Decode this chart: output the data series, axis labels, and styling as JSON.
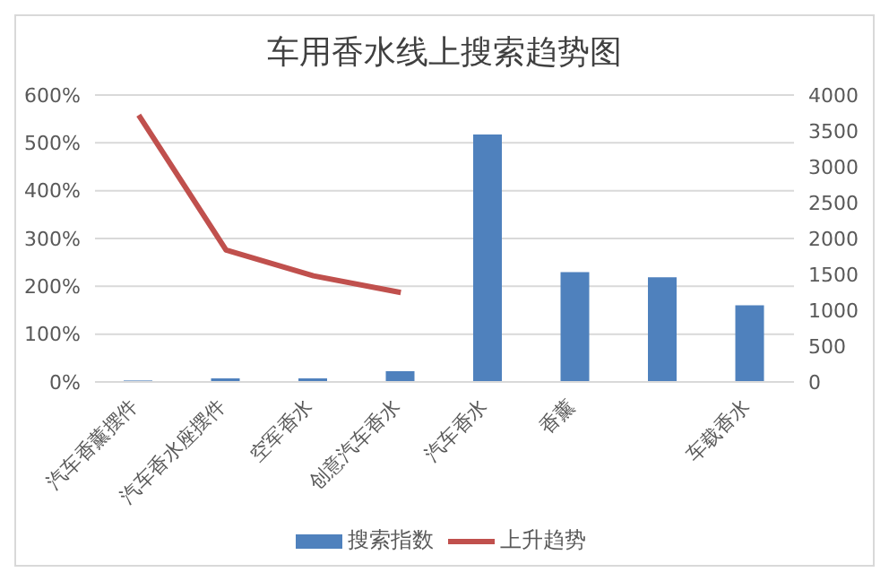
{
  "chart_data": {
    "type": "bar",
    "title": "车用香水线上搜索趋势图",
    "categories": [
      "汽车香薰摆件",
      "汽车香水座摆件",
      "空军香水",
      "创意汽车香水",
      "汽车香水",
      "香薰",
      null,
      "车载香水"
    ],
    "series": [
      {
        "name": "搜索指数",
        "axis": "y2",
        "color": "#4f81bd",
        "values": [
          20,
          50,
          50,
          150,
          3450,
          1530,
          1460,
          1070
        ]
      },
      {
        "name": "上升趋势",
        "type": "line",
        "axis": "y",
        "color": "#c0504d",
        "values": [
          558,
          276,
          222,
          187,
          null,
          null,
          null,
          null
        ]
      }
    ],
    "ylim": [
      0,
      600
    ],
    "yticks": [
      {
        "value": 0,
        "label": "0%"
      },
      {
        "value": 100,
        "label": "100%"
      },
      {
        "value": 200,
        "label": "200%"
      },
      {
        "value": 300,
        "label": "300%"
      },
      {
        "value": 400,
        "label": "400%"
      },
      {
        "value": 500,
        "label": "500%"
      },
      {
        "value": 600,
        "label": "600%"
      }
    ],
    "y2lim": [
      0,
      4000
    ],
    "y2ticks": [
      0,
      500,
      1000,
      1500,
      2000,
      2500,
      3000,
      3500,
      4000
    ],
    "grid": "y",
    "legend": "bottom",
    "marker": "none"
  }
}
